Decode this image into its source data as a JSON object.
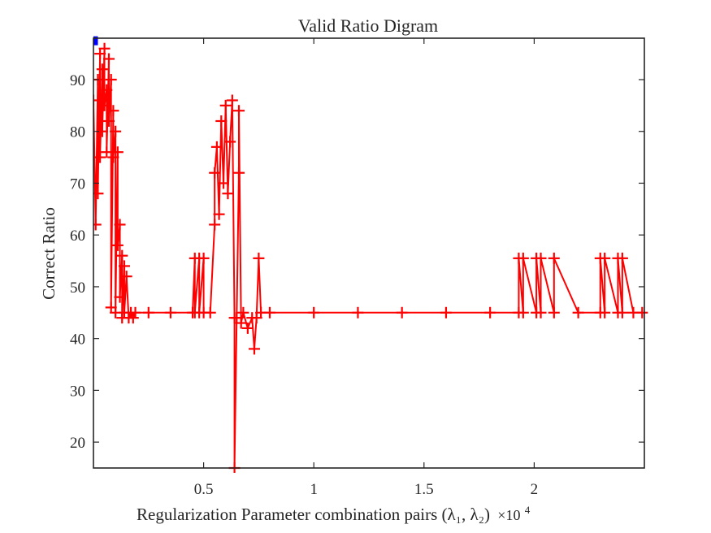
{
  "chart_data": {
    "type": "line",
    "title": "Valid Ratio Digram",
    "xlabel": "Regularization Parameter combination pairs (λ₁, λ₂)",
    "x_multiplier_text": "×10",
    "x_multiplier_exponent": "4",
    "ylabel": "Correct Ratio",
    "xlim": [
      0,
      2.5
    ],
    "ylim": [
      15,
      98
    ],
    "xticks": [
      0.5,
      1,
      1.5,
      2
    ],
    "xtick_labels": [
      "0.5",
      "1",
      "1.5",
      "2"
    ],
    "yticks": [
      20,
      30,
      40,
      50,
      60,
      70,
      80,
      90
    ],
    "ytick_labels": [
      "20",
      "30",
      "40",
      "50",
      "60",
      "70",
      "80",
      "90"
    ],
    "grid": false,
    "series": [
      {
        "color": "#ff0000",
        "marker": "+",
        "x": [
          0.0,
          0.01,
          0.02,
          0.02,
          0.03,
          0.03,
          0.04,
          0.04,
          0.05,
          0.05,
          0.06,
          0.06,
          0.07,
          0.07,
          0.08,
          0.08,
          0.09,
          0.09,
          0.1,
          0.1,
          0.11,
          0.11,
          0.12,
          0.12,
          0.13,
          0.13,
          0.14,
          0.14,
          0.15,
          0.16,
          0.17,
          0.18,
          0.19,
          0.25,
          0.35,
          0.45,
          0.46,
          0.46,
          0.48,
          0.48,
          0.5,
          0.5,
          0.53,
          0.55,
          0.55,
          0.56,
          0.57,
          0.58,
          0.59,
          0.6,
          0.61,
          0.62,
          0.63,
          0.64,
          0.64,
          0.65,
          0.66,
          0.66,
          0.67,
          0.68,
          0.7,
          0.72,
          0.73,
          0.74,
          0.75,
          0.76,
          0.8,
          1.0,
          1.2,
          1.4,
          1.6,
          1.8,
          1.93,
          1.93,
          1.95,
          1.95,
          2.01,
          2.01,
          2.03,
          2.03,
          2.09,
          2.09,
          2.2,
          2.3,
          2.3,
          2.32,
          2.32,
          2.38,
          2.38,
          2.4,
          2.4,
          2.45,
          2.49
        ],
        "values": [
          86,
          62,
          90,
          68,
          95,
          75,
          92,
          80,
          96,
          85,
          88,
          76,
          94,
          82,
          90,
          46,
          84,
          75,
          80,
          45,
          76,
          58,
          62,
          48,
          56,
          44,
          54,
          45,
          52,
          44,
          45,
          44,
          45,
          45,
          45,
          45,
          55.5,
          45,
          55.5,
          45,
          55.5,
          45,
          45,
          62,
          72,
          77,
          64,
          82,
          70,
          85,
          68,
          78,
          86,
          44,
          15,
          44,
          72,
          84,
          43,
          45,
          42,
          44,
          38,
          44,
          55.5,
          45,
          45,
          45,
          45,
          45,
          45,
          45,
          45,
          55.5,
          45,
          55.5,
          45,
          55.5,
          45,
          55.5,
          45,
          55.5,
          45,
          45,
          55.5,
          45,
          55.5,
          45,
          55.5,
          45,
          55.5,
          45,
          45
        ]
      },
      {
        "color": "#0000ff",
        "marker": "square",
        "x": [
          0.0
        ],
        "values": [
          97.5
        ]
      }
    ]
  }
}
